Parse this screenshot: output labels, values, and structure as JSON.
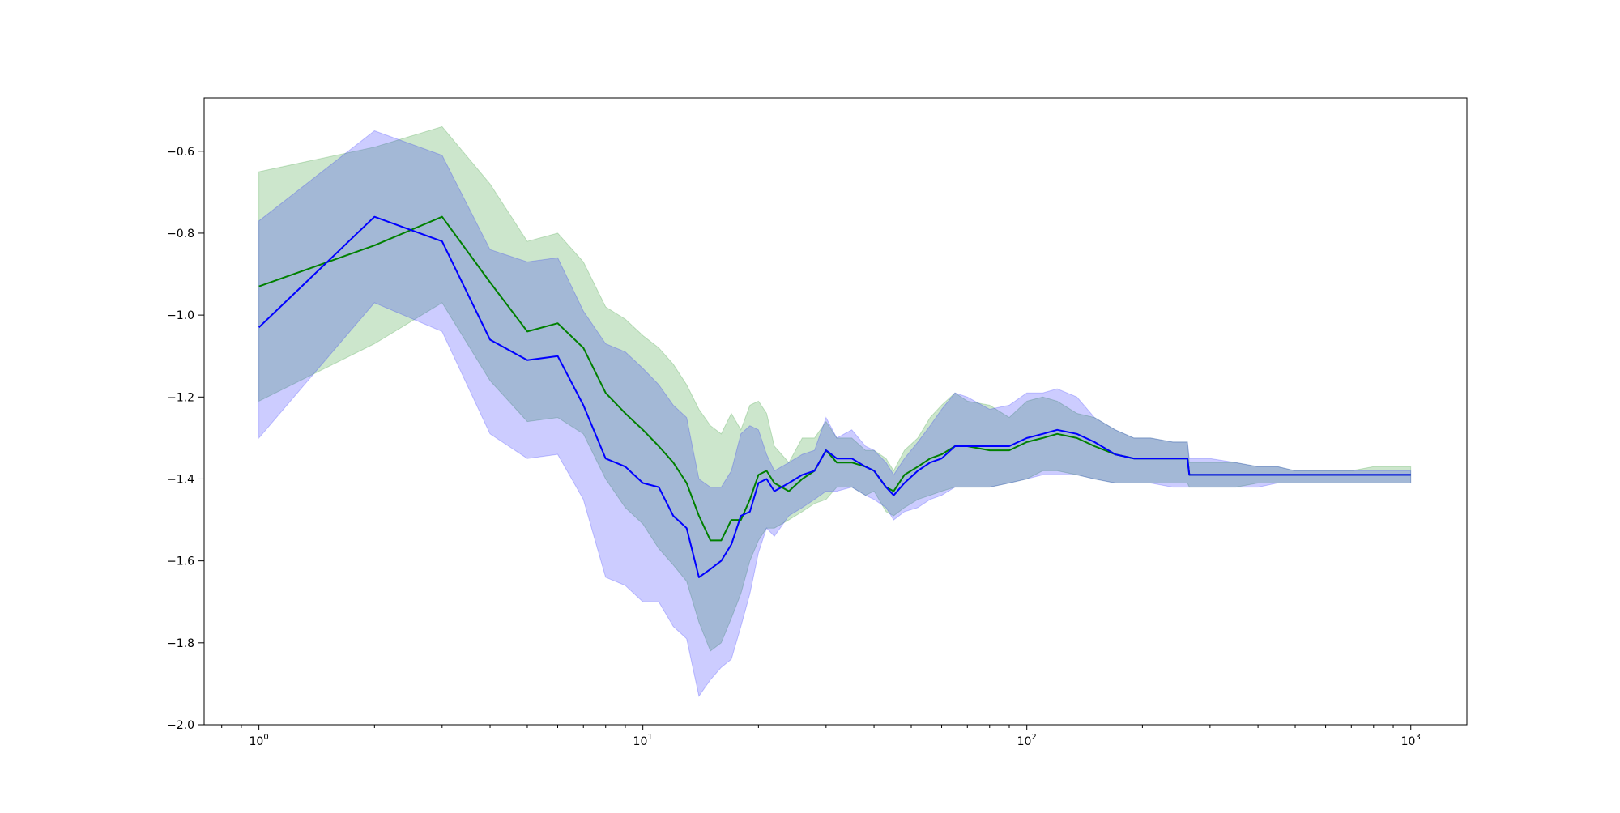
{
  "chart_data": {
    "type": "line",
    "title": "",
    "xlabel": "",
    "ylabel": "",
    "xscale": "log",
    "xlim": [
      0.72,
      1400
    ],
    "ylim": [
      -2.0,
      -0.47
    ],
    "grid": false,
    "legend": "none",
    "x_tick_labels": [
      {
        "value": 1,
        "base": "10",
        "exp": "0"
      },
      {
        "value": 10,
        "base": "10",
        "exp": "1"
      },
      {
        "value": 100,
        "base": "10",
        "exp": "2"
      },
      {
        "value": 1000,
        "base": "10",
        "exp": "3"
      }
    ],
    "y_ticks": [
      -2.0,
      -1.8,
      -1.6,
      -1.4,
      -1.2,
      -1.0,
      -0.8,
      -0.6
    ],
    "y_tick_labels": [
      "−2.0",
      "−1.8",
      "−1.6",
      "−1.4",
      "−1.2",
      "−1.0",
      "−0.8",
      "−0.6"
    ],
    "series": [
      {
        "color": "#008000",
        "band_color": "#008000",
        "band_opacity": 0.2,
        "x": [
          1,
          2,
          3,
          4,
          5,
          6,
          7,
          8,
          9,
          10,
          11,
          12,
          13,
          14,
          15,
          16,
          17,
          18,
          19,
          20,
          21,
          22,
          24,
          26,
          28,
          30,
          32,
          35,
          38,
          40,
          43,
          45,
          48,
          52,
          56,
          60,
          65,
          70,
          80,
          90,
          100,
          110,
          120,
          135,
          150,
          170,
          190,
          210,
          240,
          262,
          265,
          300,
          350,
          400,
          450,
          500,
          600,
          700,
          800,
          900,
          1000
        ],
        "y": [
          -0.93,
          -0.83,
          -0.76,
          -0.92,
          -1.04,
          -1.02,
          -1.08,
          -1.19,
          -1.24,
          -1.28,
          -1.32,
          -1.36,
          -1.41,
          -1.49,
          -1.55,
          -1.55,
          -1.5,
          -1.5,
          -1.45,
          -1.39,
          -1.38,
          -1.41,
          -1.43,
          -1.4,
          -1.38,
          -1.33,
          -1.36,
          -1.36,
          -1.37,
          -1.38,
          -1.42,
          -1.43,
          -1.39,
          -1.37,
          -1.35,
          -1.34,
          -1.32,
          -1.32,
          -1.33,
          -1.33,
          -1.31,
          -1.3,
          -1.29,
          -1.3,
          -1.32,
          -1.34,
          -1.35,
          -1.35,
          -1.35,
          -1.35,
          -1.39,
          -1.39,
          -1.39,
          -1.39,
          -1.39,
          -1.39,
          -1.39,
          -1.39,
          -1.39,
          -1.39,
          -1.39
        ],
        "upper": [
          -0.65,
          -0.59,
          -0.54,
          -0.68,
          -0.82,
          -0.8,
          -0.87,
          -0.98,
          -1.01,
          -1.05,
          -1.08,
          -1.12,
          -1.17,
          -1.23,
          -1.27,
          -1.29,
          -1.24,
          -1.28,
          -1.22,
          -1.21,
          -1.24,
          -1.32,
          -1.36,
          -1.3,
          -1.3,
          -1.26,
          -1.3,
          -1.3,
          -1.33,
          -1.33,
          -1.35,
          -1.38,
          -1.33,
          -1.3,
          -1.25,
          -1.22,
          -1.19,
          -1.21,
          -1.22,
          -1.25,
          -1.21,
          -1.2,
          -1.21,
          -1.24,
          -1.25,
          -1.28,
          -1.3,
          -1.3,
          -1.31,
          -1.31,
          -1.36,
          -1.36,
          -1.36,
          -1.37,
          -1.37,
          -1.38,
          -1.38,
          -1.38,
          -1.37,
          -1.37,
          -1.37
        ],
        "lower": [
          -1.21,
          -1.07,
          -0.97,
          -1.16,
          -1.26,
          -1.25,
          -1.29,
          -1.4,
          -1.47,
          -1.51,
          -1.57,
          -1.61,
          -1.65,
          -1.75,
          -1.82,
          -1.8,
          -1.74,
          -1.68,
          -1.6,
          -1.55,
          -1.52,
          -1.52,
          -1.5,
          -1.48,
          -1.46,
          -1.45,
          -1.42,
          -1.42,
          -1.44,
          -1.43,
          -1.48,
          -1.49,
          -1.47,
          -1.45,
          -1.44,
          -1.43,
          -1.42,
          -1.42,
          -1.42,
          -1.41,
          -1.4,
          -1.38,
          -1.38,
          -1.39,
          -1.4,
          -1.41,
          -1.41,
          -1.41,
          -1.41,
          -1.41,
          -1.42,
          -1.42,
          -1.42,
          -1.41,
          -1.41,
          -1.41,
          -1.41,
          -1.41,
          -1.41,
          -1.41,
          -1.41
        ]
      },
      {
        "color": "#0000ff",
        "band_color": "#0000ff",
        "band_opacity": 0.2,
        "x": [
          1,
          2,
          3,
          4,
          5,
          6,
          7,
          8,
          9,
          10,
          11,
          12,
          13,
          14,
          15,
          16,
          17,
          18,
          19,
          20,
          21,
          22,
          24,
          26,
          28,
          30,
          32,
          35,
          38,
          40,
          43,
          45,
          48,
          52,
          56,
          60,
          65,
          70,
          80,
          90,
          100,
          110,
          120,
          135,
          150,
          170,
          190,
          210,
          240,
          262,
          265,
          300,
          350,
          400,
          450,
          500,
          600,
          700,
          800,
          900,
          1000
        ],
        "y": [
          -1.03,
          -0.76,
          -0.82,
          -1.06,
          -1.11,
          -1.1,
          -1.22,
          -1.35,
          -1.37,
          -1.41,
          -1.42,
          -1.49,
          -1.52,
          -1.64,
          -1.62,
          -1.6,
          -1.56,
          -1.49,
          -1.48,
          -1.41,
          -1.4,
          -1.43,
          -1.41,
          -1.39,
          -1.38,
          -1.33,
          -1.35,
          -1.35,
          -1.37,
          -1.38,
          -1.42,
          -1.44,
          -1.41,
          -1.38,
          -1.36,
          -1.35,
          -1.32,
          -1.32,
          -1.32,
          -1.32,
          -1.3,
          -1.29,
          -1.28,
          -1.29,
          -1.31,
          -1.34,
          -1.35,
          -1.35,
          -1.35,
          -1.35,
          -1.39,
          -1.39,
          -1.39,
          -1.39,
          -1.39,
          -1.39,
          -1.39,
          -1.39,
          -1.39,
          -1.39,
          -1.39
        ],
        "upper": [
          -0.77,
          -0.55,
          -0.61,
          -0.84,
          -0.87,
          -0.86,
          -0.99,
          -1.07,
          -1.09,
          -1.13,
          -1.17,
          -1.22,
          -1.25,
          -1.4,
          -1.42,
          -1.42,
          -1.38,
          -1.29,
          -1.27,
          -1.28,
          -1.34,
          -1.38,
          -1.36,
          -1.34,
          -1.33,
          -1.25,
          -1.3,
          -1.28,
          -1.32,
          -1.33,
          -1.36,
          -1.39,
          -1.35,
          -1.31,
          -1.27,
          -1.23,
          -1.19,
          -1.2,
          -1.23,
          -1.22,
          -1.19,
          -1.19,
          -1.18,
          -1.2,
          -1.25,
          -1.28,
          -1.3,
          -1.3,
          -1.31,
          -1.31,
          -1.35,
          -1.35,
          -1.36,
          -1.37,
          -1.37,
          -1.38,
          -1.38,
          -1.38,
          -1.38,
          -1.38,
          -1.38
        ],
        "lower": [
          -1.3,
          -0.97,
          -1.04,
          -1.29,
          -1.35,
          -1.34,
          -1.45,
          -1.64,
          -1.66,
          -1.7,
          -1.7,
          -1.76,
          -1.79,
          -1.93,
          -1.89,
          -1.86,
          -1.84,
          -1.76,
          -1.68,
          -1.58,
          -1.52,
          -1.54,
          -1.49,
          -1.47,
          -1.45,
          -1.43,
          -1.43,
          -1.42,
          -1.44,
          -1.45,
          -1.47,
          -1.5,
          -1.48,
          -1.47,
          -1.45,
          -1.44,
          -1.42,
          -1.42,
          -1.42,
          -1.41,
          -1.4,
          -1.39,
          -1.39,
          -1.39,
          -1.4,
          -1.41,
          -1.41,
          -1.41,
          -1.42,
          -1.42,
          -1.42,
          -1.42,
          -1.42,
          -1.42,
          -1.41,
          -1.41,
          -1.41,
          -1.41,
          -1.41,
          -1.41,
          -1.41
        ]
      }
    ]
  }
}
